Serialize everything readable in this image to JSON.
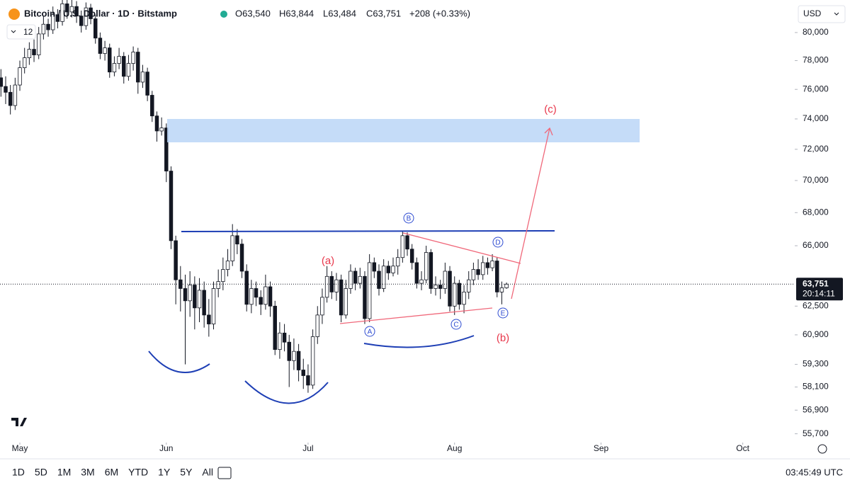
{
  "header": {
    "title": "Bitcoin / U.S. Dollar · 1D · Bitstamp",
    "open": "O63,540",
    "high": "H63,844",
    "low": "L63,484",
    "close": "C63,751",
    "change": "+208 (+0.33%)",
    "indicator_count": "12",
    "currency": "USD"
  },
  "annotations": {
    "wave_a": "(a)",
    "wave_b": "(b)",
    "wave_c": "(c)",
    "point_a": "A",
    "point_b": "B",
    "point_c": "C",
    "point_d": "D",
    "point_e": "E"
  },
  "toolbar": {
    "ranges": [
      "1D",
      "5D",
      "1M",
      "3M",
      "6M",
      "YTD",
      "1Y",
      "5Y",
      "All"
    ],
    "clock": "03:45:49 UTC"
  },
  "chart_data": {
    "type": "candlestick",
    "title": "Bitcoin / U.S. Dollar · 1D · Bitstamp",
    "log_scale": true,
    "grid": false,
    "up_color": "#ffffff",
    "down_color": "#131722",
    "wick_color": "#131722",
    "last_price_label": "63,751",
    "countdown": "20:14:11",
    "xlim": [
      -0.2,
      168
    ],
    "ylim": [
      55260,
      82120
    ],
    "xticks": [
      {
        "value": 4,
        "label": "May"
      },
      {
        "value": 35,
        "label": "Jun"
      },
      {
        "value": 65,
        "label": "Jul"
      },
      {
        "value": 96,
        "label": "Aug"
      },
      {
        "value": 127,
        "label": "Sep"
      },
      {
        "value": 157,
        "label": "Oct"
      }
    ],
    "yticks": [
      {
        "value": 80000,
        "label": "80,000"
      },
      {
        "value": 78000,
        "label": "78,000"
      },
      {
        "value": 76000,
        "label": "76,000"
      },
      {
        "value": 74000,
        "label": "74,000"
      },
      {
        "value": 72000,
        "label": "72,000"
      },
      {
        "value": 70000,
        "label": "70,000"
      },
      {
        "value": 68000,
        "label": "68,000"
      },
      {
        "value": 66000,
        "label": "66,000"
      },
      {
        "value": 62500,
        "label": "62,500"
      },
      {
        "value": 60900,
        "label": "60,900"
      },
      {
        "value": 59300,
        "label": "59,300"
      },
      {
        "value": 58100,
        "label": "58,100"
      },
      {
        "value": 56900,
        "label": "56,900"
      },
      {
        "value": 55700,
        "label": "55,700"
      }
    ],
    "x": [
      0,
      1,
      2,
      3,
      4,
      5,
      6,
      7,
      8,
      9,
      10,
      11,
      12,
      13,
      14,
      15,
      16,
      17,
      18,
      19,
      20,
      21,
      22,
      23,
      24,
      25,
      26,
      27,
      28,
      29,
      30,
      31,
      32,
      33,
      34,
      35,
      36,
      37,
      38,
      39,
      40,
      41,
      42,
      43,
      44,
      45,
      46,
      47,
      48,
      49,
      50,
      51,
      52,
      53,
      54,
      55,
      56,
      57,
      58,
      59,
      60,
      61,
      62,
      63,
      64,
      65,
      66,
      67,
      68,
      69,
      70,
      71,
      72,
      73,
      74,
      75,
      76,
      77,
      78,
      79,
      80,
      81,
      82,
      83,
      84,
      85,
      86,
      87,
      88,
      89,
      90,
      91,
      92,
      93,
      94,
      95,
      96,
      97,
      98,
      99,
      100,
      101,
      102,
      103,
      104,
      105,
      106,
      107
    ],
    "open": [
      76800,
      76200,
      75800,
      74900,
      76300,
      77500,
      78200,
      78800,
      78400,
      79900,
      80600,
      80200,
      81300,
      80800,
      82100,
      81500,
      81900,
      81200,
      80500,
      81800,
      81000,
      79600,
      78500,
      78900,
      77200,
      77800,
      78300,
      76900,
      77800,
      78600,
      76500,
      77200,
      75600,
      74200,
      73200,
      73400,
      70600,
      66300,
      64000,
      63500,
      62800,
      63700,
      62400,
      63400,
      62000,
      61500,
      63500,
      63900,
      64600,
      65100,
      66600,
      66100,
      64500,
      62600,
      63500,
      63000,
      62600,
      63600,
      62500,
      60100,
      61000,
      60500,
      59500,
      60000,
      59000,
      58700,
      58200,
      60800,
      62000,
      63000,
      64200,
      63300,
      64000,
      62000,
      63500,
      64500,
      63800,
      64200,
      61800,
      65000,
      64500,
      63500,
      64800,
      64400,
      64800,
      65300,
      66600,
      65800,
      65000,
      63800,
      64000,
      65600,
      63500,
      63700,
      63500,
      64500,
      62500,
      63800,
      62600,
      63300,
      64000,
      64600,
      64300,
      65000,
      64700,
      65100,
      63300,
      63540
    ],
    "high": [
      77400,
      76900,
      76300,
      76800,
      78000,
      78900,
      79300,
      79500,
      80400,
      81200,
      81000,
      81900,
      81700,
      82600,
      82700,
      82400,
      82300,
      81600,
      82200,
      82100,
      81300,
      80000,
      79400,
      79200,
      78300,
      78900,
      78600,
      78400,
      79000,
      78900,
      77700,
      77500,
      75900,
      74500,
      74100,
      73700,
      70900,
      66600,
      64800,
      64300,
      64500,
      64200,
      64100,
      63900,
      62900,
      63900,
      64600,
      65300,
      65800,
      67300,
      67000,
      66400,
      64900,
      64000,
      63900,
      63400,
      64300,
      63900,
      62800,
      61600,
      61500,
      60900,
      60700,
      60400,
      59600,
      59300,
      61200,
      62500,
      63500,
      64800,
      64500,
      64400,
      64300,
      64000,
      64900,
      64700,
      64700,
      64500,
      65500,
      65300,
      64900,
      65200,
      65100,
      65300,
      65800,
      66900,
      66800,
      66100,
      65300,
      64500,
      66000,
      65800,
      64200,
      64000,
      65000,
      64800,
      64200,
      64000,
      63700,
      64500,
      65000,
      65200,
      65400,
      65300,
      65500,
      65300,
      63900,
      63844
    ],
    "low": [
      75500,
      75000,
      74300,
      74600,
      75900,
      77100,
      77700,
      77900,
      78100,
      79500,
      79700,
      79900,
      80300,
      80500,
      81000,
      81100,
      80700,
      80000,
      80200,
      80600,
      79200,
      78100,
      78000,
      76800,
      76900,
      77400,
      76400,
      76600,
      77300,
      75700,
      76100,
      75200,
      73800,
      72500,
      72900,
      69900,
      65800,
      62600,
      62200,
      59300,
      61900,
      61200,
      61600,
      61300,
      60800,
      61200,
      63000,
      63400,
      64200,
      64800,
      65500,
      64100,
      62200,
      62100,
      62500,
      62000,
      62300,
      61900,
      59800,
      59600,
      60000,
      58100,
      59000,
      58400,
      58000,
      57800,
      58000,
      60400,
      61500,
      62700,
      62900,
      62800,
      61600,
      61800,
      63200,
      63400,
      63500,
      61500,
      61600,
      64100,
      63100,
      63300,
      64000,
      64200,
      64300,
      65000,
      65400,
      64600,
      63500,
      63400,
      63800,
      63200,
      63100,
      62900,
      63200,
      62200,
      62000,
      62300,
      62100,
      62900,
      63700,
      64000,
      64000,
      64300,
      64500,
      63000,
      62600,
      63484
    ],
    "close": [
      76200,
      75800,
      74900,
      76300,
      77500,
      78200,
      78800,
      78400,
      79900,
      80600,
      80200,
      81300,
      80800,
      82100,
      81500,
      81900,
      81200,
      80500,
      81800,
      81000,
      79600,
      78500,
      78900,
      77200,
      77800,
      78300,
      76900,
      77800,
      78600,
      76500,
      77200,
      75600,
      74200,
      73200,
      73400,
      70600,
      66300,
      64000,
      63500,
      62800,
      63700,
      62400,
      63400,
      62000,
      61500,
      63500,
      63900,
      64600,
      65100,
      66600,
      66100,
      64500,
      62600,
      63500,
      63000,
      62600,
      63600,
      62500,
      60100,
      61000,
      60500,
      59500,
      60000,
      59000,
      58700,
      58200,
      60800,
      62000,
      63000,
      64200,
      63300,
      64000,
      62000,
      63500,
      64500,
      63800,
      64200,
      61800,
      65000,
      64500,
      63500,
      64800,
      64400,
      64800,
      65300,
      66600,
      65800,
      65000,
      63800,
      64000,
      65600,
      63500,
      63700,
      63500,
      64500,
      62500,
      63800,
      62600,
      63300,
      64000,
      64600,
      64300,
      65000,
      64700,
      65100,
      63300,
      63543,
      63751
    ]
  }
}
